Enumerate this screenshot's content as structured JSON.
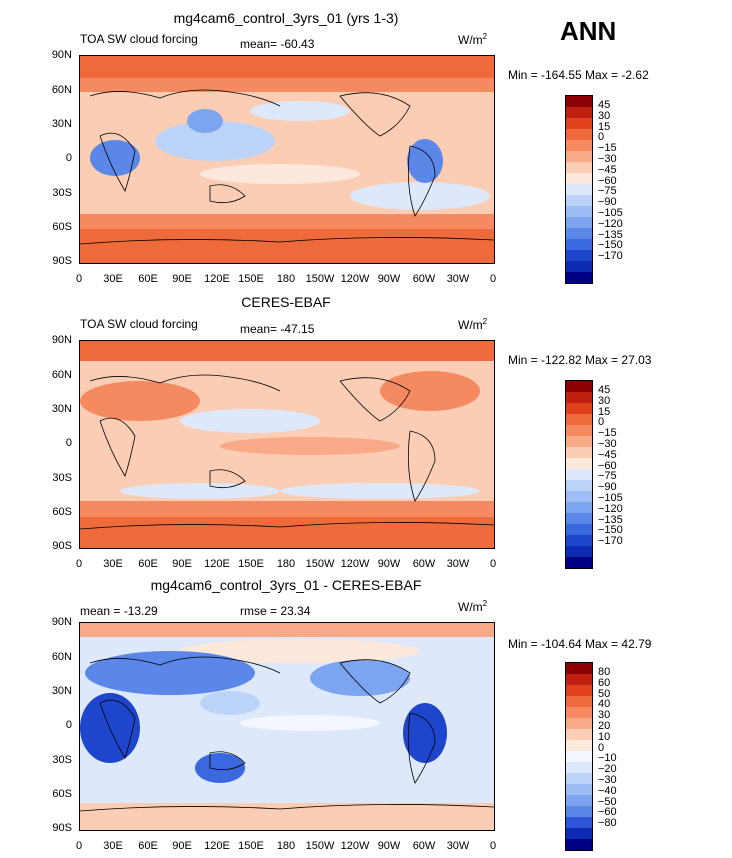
{
  "season": "ANN",
  "units": "W/m",
  "units_sup": "2",
  "lon_ticks": [
    "0",
    "30E",
    "60E",
    "90E",
    "120E",
    "150E",
    "180",
    "150W",
    "120W",
    "90W",
    "60W",
    "30W",
    "0"
  ],
  "lat_ticks": [
    "90N",
    "60N",
    "30N",
    "0",
    "30S",
    "60S",
    "90S"
  ],
  "panels": [
    {
      "title": "mg4cam6_control_3yrs_01 (yrs 1-3)",
      "left_label": "TOA SW cloud forcing",
      "stat_label": "mean= -60.43",
      "minmax": "Min = -164.55  Max =  -2.62",
      "colorbar": {
        "colors": [
          "#8b0000",
          "#c0200f",
          "#e0401a",
          "#ee6a3a",
          "#f58a60",
          "#f8aa88",
          "#fbcdb4",
          "#fde8dc",
          "#dde8fb",
          "#bcd3f8",
          "#9dbdf4",
          "#7ca4ef",
          "#5a87e8",
          "#3a68de",
          "#1d46cc",
          "#0d2bb0",
          "#000088"
        ],
        "labels": [
          "45",
          "30",
          "15",
          "0",
          "−15",
          "−30",
          "−45",
          "−60",
          "−75",
          "−90",
          "−105",
          "−120",
          "−135",
          "−150",
          "−170"
        ]
      }
    },
    {
      "title": "CERES-EBAF",
      "left_label": "TOA SW cloud forcing",
      "stat_label": "mean= -47.15",
      "minmax": "Min = -122.82  Max =  27.03",
      "colorbar": {
        "colors": [
          "#8b0000",
          "#c0200f",
          "#e0401a",
          "#ee6a3a",
          "#f58a60",
          "#f8aa88",
          "#fbcdb4",
          "#fde8dc",
          "#dde8fb",
          "#bcd3f8",
          "#9dbdf4",
          "#7ca4ef",
          "#5a87e8",
          "#3a68de",
          "#1d46cc",
          "#0d2bb0",
          "#000088"
        ],
        "labels": [
          "45",
          "30",
          "15",
          "0",
          "−15",
          "−30",
          "−45",
          "−60",
          "−75",
          "−90",
          "−105",
          "−120",
          "−135",
          "−150",
          "−170"
        ]
      }
    },
    {
      "title": "mg4cam6_control_3yrs_01 - CERES-EBAF",
      "left_label": "mean = -13.29",
      "stat_label": "rmse =  23.34",
      "minmax": "Min = -104.64  Max =  42.79",
      "colorbar": {
        "colors": [
          "#8b0000",
          "#c0200f",
          "#e0401a",
          "#ee6a3a",
          "#f58a60",
          "#f8aa88",
          "#fbcdb4",
          "#fde8dc",
          "#f4f7fd",
          "#dde8fb",
          "#bcd3f8",
          "#9dbdf4",
          "#7ca4ef",
          "#5a87e8",
          "#2d55d6",
          "#0d2bb0",
          "#000088"
        ],
        "labels": [
          "80",
          "60",
          "50",
          "40",
          "30",
          "20",
          "10",
          "0",
          "−10",
          "−20",
          "−30",
          "−40",
          "−50",
          "−60",
          "−80"
        ]
      }
    }
  ]
}
